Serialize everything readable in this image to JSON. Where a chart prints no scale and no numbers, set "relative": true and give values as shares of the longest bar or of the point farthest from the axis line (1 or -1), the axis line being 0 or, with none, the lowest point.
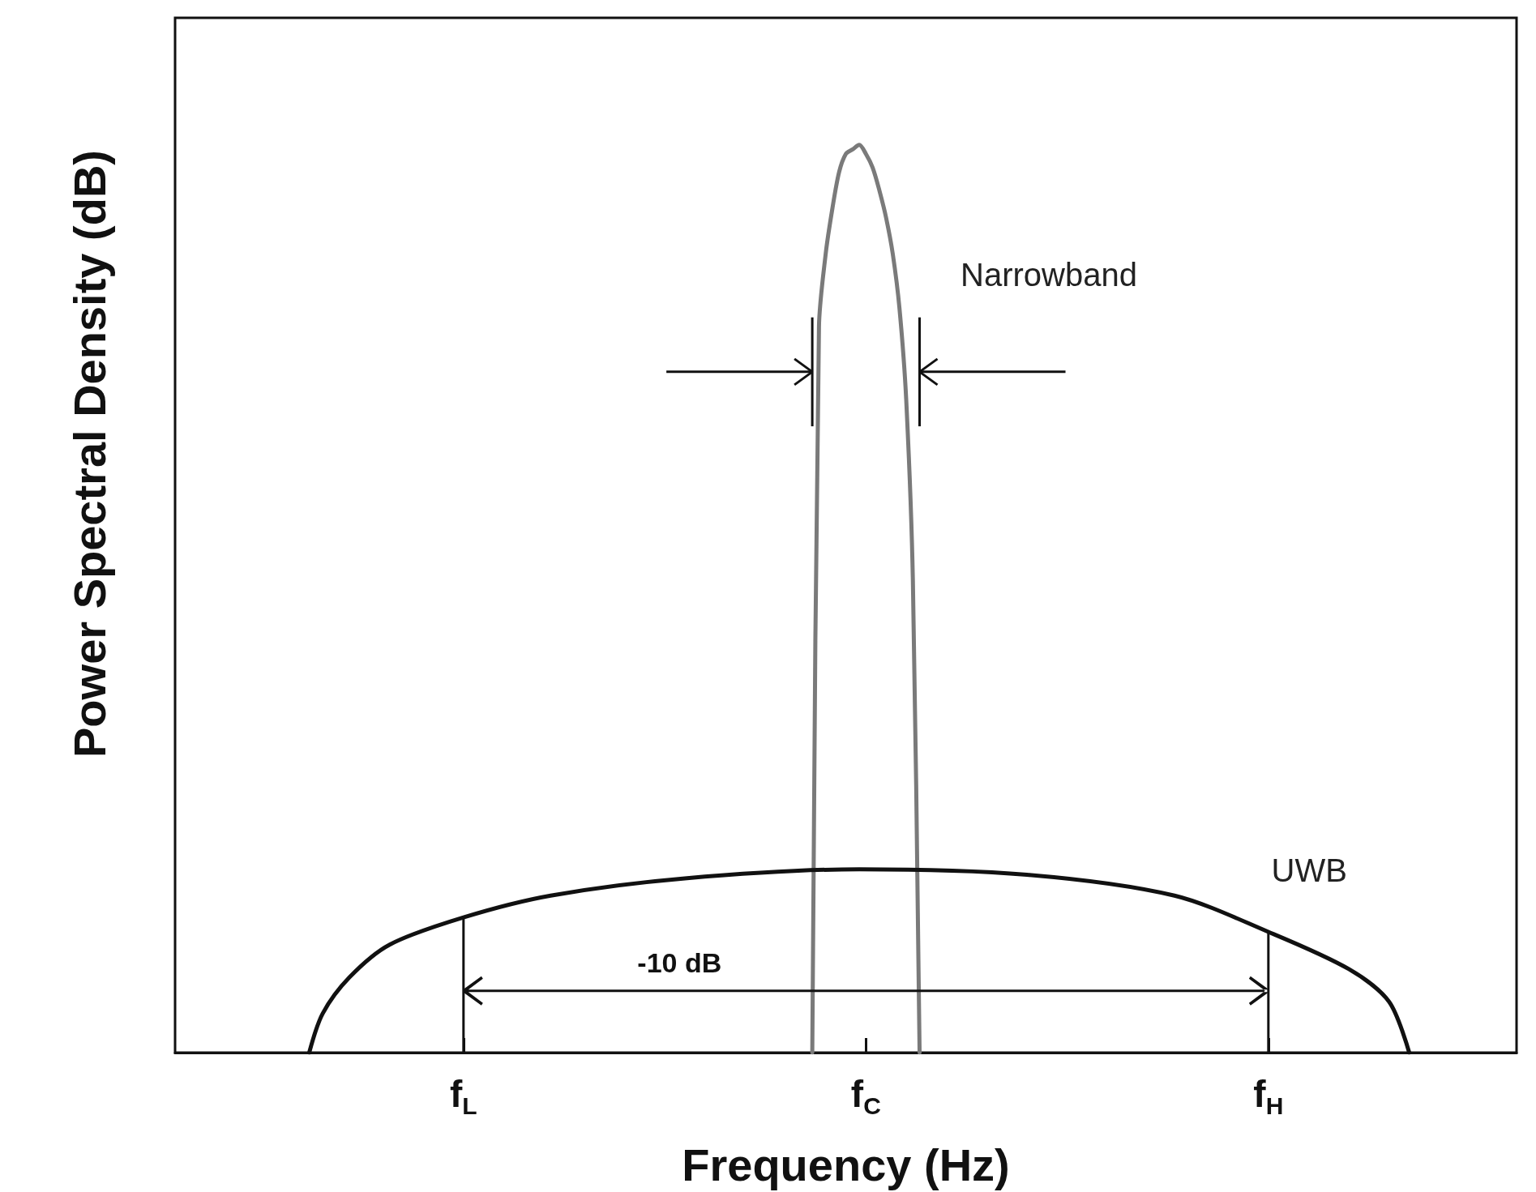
{
  "chart_data": {
    "type": "line",
    "relative": true,
    "xlabel": "Frequency (Hz)",
    "ylabel": "Power Spectral Density (dB)",
    "categories": [
      null,
      null,
      null,
      null,
      null,
      null,
      null,
      null,
      null,
      null,
      null,
      null,
      null,
      null,
      null,
      null,
      null,
      null,
      null,
      null,
      null,
      null,
      null,
      null,
      null,
      null,
      null,
      null,
      null,
      null,
      null,
      null,
      null,
      null,
      null,
      null,
      null,
      null,
      null,
      null,
      null,
      null,
      null,
      "f$_{L}$",
      null,
      null,
      null,
      null,
      null,
      null,
      null,
      null,
      null,
      null,
      null,
      null,
      null,
      null,
      null,
      null,
      null,
      null,
      null,
      null,
      null,
      null,
      null,
      null,
      null,
      null,
      null,
      null,
      null,
      null,
      null,
      null,
      null,
      null,
      null,
      null,
      null,
      null,
      null,
      null,
      null,
      null,
      null,
      null,
      null,
      null,
      null,
      null,
      null,
      null,
      null,
      null,
      null,
      null,
      null,
      null,
      null,
      null,
      null,
      "f$_{C}$",
      null,
      null,
      null,
      null,
      null,
      null,
      null,
      null,
      null,
      null,
      null,
      null,
      null,
      null,
      null,
      null,
      null,
      null,
      null,
      null,
      null,
      null,
      null,
      null,
      null,
      null,
      null,
      null,
      null,
      null,
      null,
      null,
      null,
      null,
      null,
      null,
      null,
      null,
      null,
      null,
      null,
      null,
      null,
      null,
      null,
      null,
      null,
      null,
      null,
      null,
      null,
      null,
      null,
      null,
      null,
      null,
      null,
      null,
      null,
      "f$_{H}$",
      null,
      null,
      null,
      null,
      null,
      null,
      null,
      null,
      null,
      null,
      null,
      null,
      null,
      null,
      null,
      null,
      null,
      null,
      null,
      null,
      null,
      null,
      null,
      null,
      null,
      null,
      null,
      null,
      null,
      null,
      null,
      null,
      null,
      null,
      null,
      null,
      null
    ],
    "annotations": [
      "-10 dB"
    ],
    "marker": "none",
    "grid": false,
    "legend": false,
    "series": [
      {
        "name": "Narrowband",
        "color": "#7a7a7a",
        "values": [
          null,
          null,
          null,
          null,
          null,
          null,
          null,
          null,
          null,
          null,
          null,
          null,
          null,
          null,
          null,
          null,
          null,
          null,
          null,
          null,
          null,
          null,
          null,
          null,
          null,
          null,
          null,
          null,
          null,
          null,
          null,
          null,
          null,
          null,
          null,
          null,
          null,
          null,
          null,
          null,
          null,
          null,
          null,
          null,
          null,
          null,
          null,
          null,
          null,
          null,
          null,
          null,
          null,
          null,
          null,
          null,
          null,
          null,
          null,
          null,
          null,
          null,
          null,
          null,
          null,
          null,
          null,
          null,
          null,
          null,
          null,
          null,
          null,
          null,
          null,
          null,
          null,
          null,
          null,
          null,
          null,
          null,
          null,
          null,
          null,
          null,
          null,
          null,
          null,
          null,
          null,
          null,
          null,
          null,
          null,
          0,
          0.8,
          0.88,
          0.93,
          0.97,
          0.99,
          0.995,
          1,
          0.99,
          0.975,
          0.95,
          0.92,
          0.88,
          0.82,
          0.72,
          0.52,
          0,
          null,
          null,
          null,
          null,
          null,
          null,
          null,
          null,
          null,
          null,
          null,
          null,
          null,
          null,
          null,
          null,
          null,
          null,
          null,
          null,
          null,
          null,
          null,
          null,
          null,
          null,
          null,
          null,
          null,
          null,
          null,
          null,
          null,
          null,
          null,
          null,
          null,
          null,
          null,
          null,
          null,
          null,
          null,
          null,
          null,
          null,
          null,
          null,
          null,
          null,
          null,
          null,
          null,
          null,
          null,
          null,
          null,
          null,
          null,
          null,
          null,
          null,
          null,
          null,
          null,
          null,
          null,
          null,
          null,
          null,
          null,
          null,
          null,
          null,
          null,
          null,
          null,
          null,
          null,
          null,
          null,
          null,
          null,
          null,
          null,
          null,
          null,
          null,
          null
        ]
      },
      {
        "name": "UWB",
        "color": "#111111",
        "values": [
          null,
          null,
          null,
          null,
          null,
          null,
          null,
          null,
          null,
          null,
          null,
          null,
          null,
          null,
          null,
          null,
          null,
          null,
          null,
          null,
          0,
          null,
          0.043,
          null,
          null,
          null,
          0.083,
          null,
          null,
          null,
          null,
          null,
          0.119,
          null,
          null,
          null,
          null,
          null,
          null,
          null,
          null,
          null,
          null,
          0.149,
          null,
          null,
          null,
          null,
          null,
          null,
          null,
          null,
          null,
          null,
          null,
          null,
          0.173,
          null,
          null,
          null,
          null,
          null,
          null,
          null,
          null,
          null,
          null,
          null,
          null,
          null,
          null,
          null,
          null,
          null,
          null,
          null,
          0.192,
          null,
          null,
          null,
          null,
          null,
          null,
          null,
          null,
          null,
          null,
          null,
          null,
          null,
          null,
          null,
          null,
          null,
          null,
          null,
          null,
          null,
          null,
          null,
          null,
          null,
          0.202,
          null,
          null,
          null,
          null,
          null,
          null,
          null,
          null,
          null,
          null,
          null,
          null,
          null,
          null,
          null,
          null,
          null,
          null,
          null,
          null,
          null,
          null,
          null,
          null,
          0.196,
          null,
          null,
          null,
          null,
          null,
          null,
          null,
          null,
          null,
          null,
          null,
          null,
          null,
          null,
          null,
          null,
          null,
          null,
          null,
          null,
          null,
          0.173,
          null,
          null,
          null,
          null,
          null,
          null,
          null,
          null,
          null,
          null,
          null,
          null,
          null,
          0.133,
          null,
          null,
          null,
          null,
          null,
          null,
          null,
          null,
          null,
          null,
          null,
          0.092,
          null,
          null,
          null,
          null,
          null,
          0.056,
          null,
          null,
          0,
          null,
          null,
          null,
          null,
          null,
          null,
          null,
          null,
          null,
          null,
          null,
          null,
          null,
          null,
          null,
          null
        ]
      }
    ]
  }
}
